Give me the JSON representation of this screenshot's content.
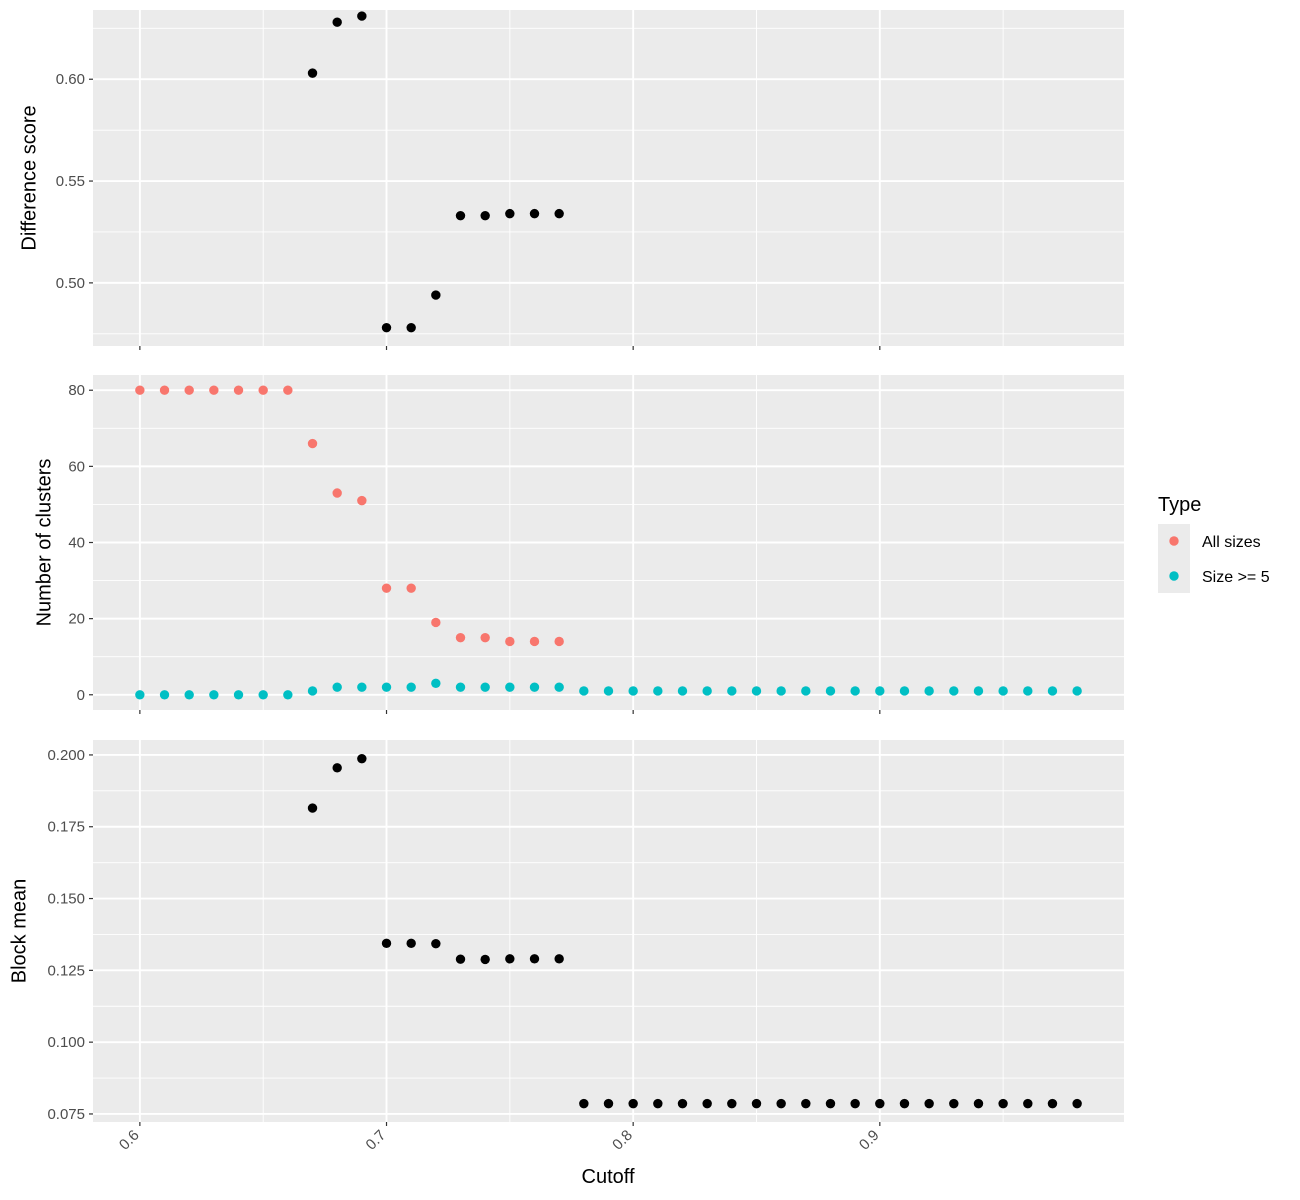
{
  "chart_data": {
    "type": "scatter",
    "xlabel": "Cutoff",
    "x_ticks": [
      0.6,
      0.7,
      0.8,
      0.9
    ],
    "x_tick_labels": [
      "0.6",
      "0.7",
      "0.8",
      "0.9"
    ],
    "xlim": [
      0.581,
      0.999
    ],
    "legend": {
      "title": "Type",
      "position": "right",
      "entries": [
        {
          "label": "All sizes",
          "color": "#F8766D"
        },
        {
          "label": "Size >= 5",
          "color": "#00BFC4"
        }
      ]
    },
    "panels": [
      {
        "ylabel": "Difference score",
        "ylim": [
          0.469,
          0.634
        ],
        "y_ticks": [
          0.5,
          0.55,
          0.6
        ],
        "y_tick_labels": [
          "0.50",
          "0.55",
          "0.60"
        ],
        "y_minor": [
          0.475,
          0.525,
          0.575,
          0.625
        ],
        "series": [
          {
            "color": "#000000",
            "x": [
              0.67,
              0.68,
              0.69,
              0.7,
              0.71,
              0.72,
              0.73,
              0.74,
              0.75,
              0.76,
              0.77
            ],
            "y": [
              0.603,
              0.628,
              0.631,
              0.478,
              0.478,
              0.494,
              0.533,
              0.533,
              0.534,
              0.534,
              0.534
            ]
          }
        ]
      },
      {
        "ylabel": "Number of clusters",
        "ylim": [
          -4,
          84
        ],
        "y_ticks": [
          0,
          20,
          40,
          60,
          80
        ],
        "y_tick_labels": [
          "0",
          "20",
          "40",
          "60",
          "80"
        ],
        "y_minor": [
          10,
          30,
          50,
          70
        ],
        "series": [
          {
            "name": "All sizes",
            "color": "#F8766D",
            "x": [
              0.6,
              0.61,
              0.62,
              0.63,
              0.64,
              0.65,
              0.66,
              0.67,
              0.68,
              0.69,
              0.7,
              0.71,
              0.72,
              0.73,
              0.74,
              0.75,
              0.76,
              0.77
            ],
            "y": [
              80,
              80,
              80,
              80,
              80,
              80,
              80,
              66,
              53,
              51,
              28,
              28,
              19,
              15,
              15,
              14,
              14,
              14
            ]
          },
          {
            "name": "Size >= 5",
            "color": "#00BFC4",
            "x": [
              0.6,
              0.61,
              0.62,
              0.63,
              0.64,
              0.65,
              0.66,
              0.67,
              0.68,
              0.69,
              0.7,
              0.71,
              0.72,
              0.73,
              0.74,
              0.75,
              0.76,
              0.77,
              0.78,
              0.79,
              0.8,
              0.81,
              0.82,
              0.83,
              0.84,
              0.85,
              0.86,
              0.87,
              0.88,
              0.89,
              0.9,
              0.91,
              0.92,
              0.93,
              0.94,
              0.95,
              0.96,
              0.97,
              0.98
            ],
            "y": [
              0,
              0,
              0,
              0,
              0,
              0,
              0,
              1,
              2,
              2,
              2,
              2,
              3,
              2,
              2,
              2,
              2,
              2,
              1,
              1,
              1,
              1,
              1,
              1,
              1,
              1,
              1,
              1,
              1,
              1,
              1,
              1,
              1,
              1,
              1,
              1,
              1,
              1,
              1
            ]
          }
        ]
      },
      {
        "ylabel": "Block mean",
        "ylim": [
          0.0722,
          0.2052
        ],
        "y_ticks": [
          0.075,
          0.1,
          0.125,
          0.15,
          0.175,
          0.2
        ],
        "y_tick_labels": [
          "0.075",
          "0.100",
          "0.125",
          "0.150",
          "0.175",
          "0.200"
        ],
        "y_minor": [
          0.0875,
          0.1125,
          0.1375,
          0.1625,
          0.1875
        ],
        "series": [
          {
            "color": "#000000",
            "x": [
              0.67,
              0.68,
              0.69,
              0.7,
              0.71,
              0.72,
              0.73,
              0.74,
              0.75,
              0.76,
              0.77,
              0.78,
              0.79,
              0.8,
              0.81,
              0.82,
              0.83,
              0.84,
              0.85,
              0.86,
              0.87,
              0.88,
              0.89,
              0.9,
              0.91,
              0.92,
              0.93,
              0.94,
              0.95,
              0.96,
              0.97,
              0.98
            ],
            "y": [
              0.1815,
              0.1955,
              0.1987,
              0.1344,
              0.1344,
              0.1343,
              0.1289,
              0.1288,
              0.129,
              0.129,
              0.129,
              0.0786,
              0.0786,
              0.0786,
              0.0786,
              0.0786,
              0.0786,
              0.0786,
              0.0786,
              0.0786,
              0.0786,
              0.0786,
              0.0786,
              0.0786,
              0.0786,
              0.0786,
              0.0786,
              0.0786,
              0.0786,
              0.0786,
              0.0786,
              0.0786
            ]
          }
        ]
      }
    ]
  }
}
